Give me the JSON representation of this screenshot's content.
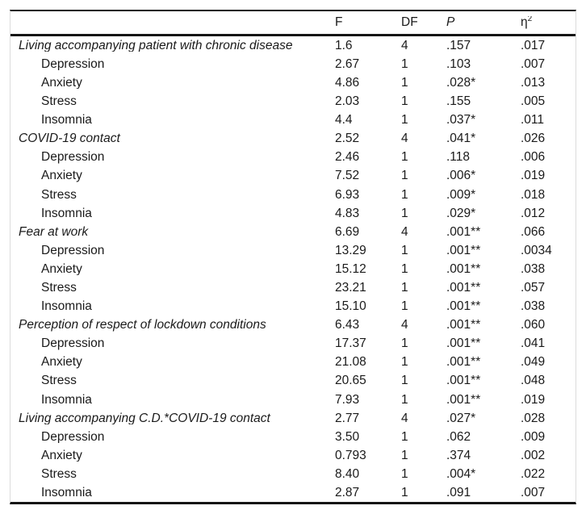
{
  "table": {
    "columns": {
      "label": "",
      "f": "F",
      "df": "DF",
      "p": "P",
      "eta_base": "η",
      "eta_sup": "2"
    },
    "rows": [
      {
        "label": "Living accompanying patient with chronic disease",
        "group": true,
        "f": "1.6",
        "df": "4",
        "p": ".157",
        "eta": ".017"
      },
      {
        "label": "Depression",
        "group": false,
        "f": "2.67",
        "df": "1",
        "p": ".103",
        "eta": ".007"
      },
      {
        "label": "Anxiety",
        "group": false,
        "f": "4.86",
        "df": "1",
        "p": ".028*",
        "eta": ".013"
      },
      {
        "label": "Stress",
        "group": false,
        "f": "2.03",
        "df": "1",
        "p": ".155",
        "eta": ".005"
      },
      {
        "label": "Insomnia",
        "group": false,
        "f": "4.4",
        "df": "1",
        "p": ".037*",
        "eta": ".011"
      },
      {
        "label": "COVID-19 contact",
        "group": true,
        "f": "2.52",
        "df": "4",
        "p": ".041*",
        "eta": ".026"
      },
      {
        "label": "Depression",
        "group": false,
        "f": "2.46",
        "df": "1",
        "p": ".118",
        "eta": ".006"
      },
      {
        "label": "Anxiety",
        "group": false,
        "f": "7.52",
        "df": "1",
        "p": ".006*",
        "eta": ".019"
      },
      {
        "label": "Stress",
        "group": false,
        "f": "6.93",
        "df": "1",
        "p": ".009*",
        "eta": ".018"
      },
      {
        "label": "Insomnia",
        "group": false,
        "f": "4.83",
        "df": "1",
        "p": ".029*",
        "eta": ".012"
      },
      {
        "label": "Fear at work",
        "group": true,
        "f": "6.69",
        "df": "4",
        "p": ".001**",
        "eta": ".066"
      },
      {
        "label": "Depression",
        "group": false,
        "f": "13.29",
        "df": "1",
        "p": ".001**",
        "eta": ".0034"
      },
      {
        "label": "Anxiety",
        "group": false,
        "f": "15.12",
        "df": "1",
        "p": ".001**",
        "eta": ".038"
      },
      {
        "label": "Stress",
        "group": false,
        "f": "23.21",
        "df": "1",
        "p": ".001**",
        "eta": ".057"
      },
      {
        "label": "Insomnia",
        "group": false,
        "f": "15.10",
        "df": "1",
        "p": ".001**",
        "eta": ".038"
      },
      {
        "label": "Perception of respect of lockdown conditions",
        "group": true,
        "f": "6.43",
        "df": "4",
        "p": ".001**",
        "eta": ".060"
      },
      {
        "label": "Depression",
        "group": false,
        "f": "17.37",
        "df": "1",
        "p": ".001**",
        "eta": ".041"
      },
      {
        "label": "Anxiety",
        "group": false,
        "f": "21.08",
        "df": "1",
        "p": ".001**",
        "eta": ".049"
      },
      {
        "label": "Stress",
        "group": false,
        "f": "20.65",
        "df": "1",
        "p": ".001**",
        "eta": ".048"
      },
      {
        "label": "Insomnia",
        "group": false,
        "f": "7.93",
        "df": "1",
        "p": ".001**",
        "eta": ".019"
      },
      {
        "label": "Living accompanying C.D.*COVID-19 contact",
        "group": true,
        "f": "2.77",
        "df": "4",
        "p": ".027*",
        "eta": ".028"
      },
      {
        "label": "Depression",
        "group": false,
        "f": "3.50",
        "df": "1",
        "p": ".062",
        "eta": ".009"
      },
      {
        "label": "Anxiety",
        "group": false,
        "f": "0.793",
        "df": "1",
        "p": ".374",
        "eta": ".002"
      },
      {
        "label": "Stress",
        "group": false,
        "f": "8.40",
        "df": "1",
        "p": ".004*",
        "eta": ".022"
      },
      {
        "label": "Insomnia",
        "group": false,
        "f": "2.87",
        "df": "1",
        "p": ".091",
        "eta": ".007"
      }
    ]
  }
}
